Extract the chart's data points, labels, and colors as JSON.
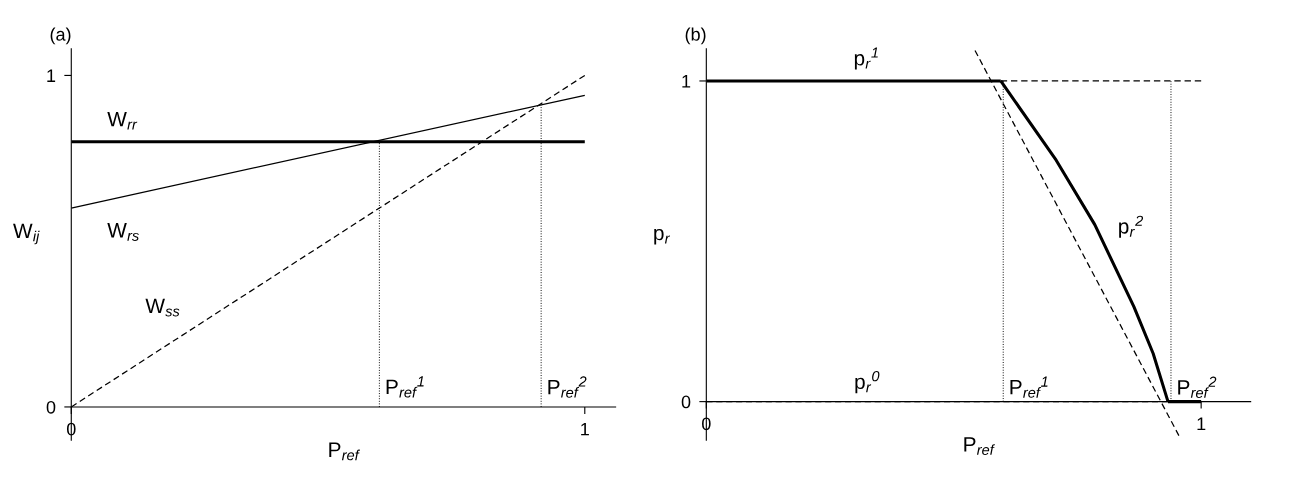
{
  "chart_data": [
    {
      "type": "line",
      "title": "(a)",
      "xlabel": "P$_{ref}$",
      "ylabel": "W$_{ij}$",
      "xlim": [
        0,
        1.06
      ],
      "ylim": [
        -0.1,
        1.08
      ],
      "xticks": [
        0,
        1
      ],
      "yticks": [
        0,
        1
      ],
      "series": [
        {
          "name": "W$_{rr}$",
          "color": "#000000",
          "x": [
            0,
            1
          ],
          "values": [
            0.8,
            0.8
          ],
          "line_style": "solid"
        },
        {
          "name": "W$_{rs}$",
          "color": "#000000",
          "x": [
            0,
            1
          ],
          "values": [
            0.6,
            0.94
          ],
          "line_style": "solid"
        },
        {
          "name": "W$_{ss}$",
          "color": "#000000",
          "x": [
            0,
            1
          ],
          "values": [
            0,
            1
          ],
          "line_style": "dashed"
        },
        {
          "name": "P$_{ref}$$^{1}$",
          "color": "#000000",
          "x": [
            0.6,
            0.6
          ],
          "values": [
            0,
            0.8
          ],
          "line_style": "dotted"
        },
        {
          "name": "P$_{ref}$$^{2}$",
          "color": "#000000",
          "x": [
            0.915,
            0.915
          ],
          "values": [
            0,
            0.91
          ],
          "line_style": "dotted"
        }
      ]
    },
    {
      "type": "line",
      "title": "(b)",
      "xlabel": "P$_{ref}$",
      "ylabel": "p$_{r}$",
      "xlim": [
        0,
        1.1
      ],
      "ylim": [
        -0.12,
        1.1
      ],
      "xticks": [
        0,
        1
      ],
      "yticks": [
        0,
        1
      ],
      "series": [
        {
          "name": "p$_{r}$$^{1}$",
          "color": "#000000",
          "x": [
            0,
            0.595
          ],
          "values": [
            1,
            1
          ],
          "line_style": "solid"
        },
        {
          "color": "#000000",
          "x": [
            0.595,
            1.0
          ],
          "values": [
            1,
            1
          ],
          "line_style": "dashed"
        },
        {
          "color": "#000000",
          "x": [
            0.543,
            0.955
          ],
          "values": [
            1.095,
            -0.106
          ],
          "line_style": "dashed"
        },
        {
          "name": "p$_{r}$$^{2}$",
          "color": "#000000",
          "x": [
            0.595,
            0.707,
            0.785,
            0.864,
            0.903,
            0.933
          ],
          "values": [
            1.0,
            0.753,
            0.552,
            0.296,
            0.15,
            0
          ],
          "line_style": "solid"
        },
        {
          "name": "p$_{r}$$^{0}$",
          "color": "#000000",
          "x": [
            0,
            0.933
          ],
          "values": [
            0,
            0
          ],
          "line_style": "dashed"
        },
        {
          "color": "#000000",
          "x": [
            0.933,
            1.0
          ],
          "values": [
            0,
            0
          ],
          "line_style": "solid"
        },
        {
          "name": "P$_{ref}$$^{1}$",
          "color": "#000000",
          "x": [
            0.6,
            0.6
          ],
          "values": [
            0,
            1
          ],
          "line_style": "dotted"
        },
        {
          "name": "P$_{ref}$$^{2}$",
          "color": "#000000",
          "x": [
            0.939,
            0.939
          ],
          "values": [
            0,
            1
          ],
          "line_style": "dotted"
        }
      ]
    }
  ]
}
